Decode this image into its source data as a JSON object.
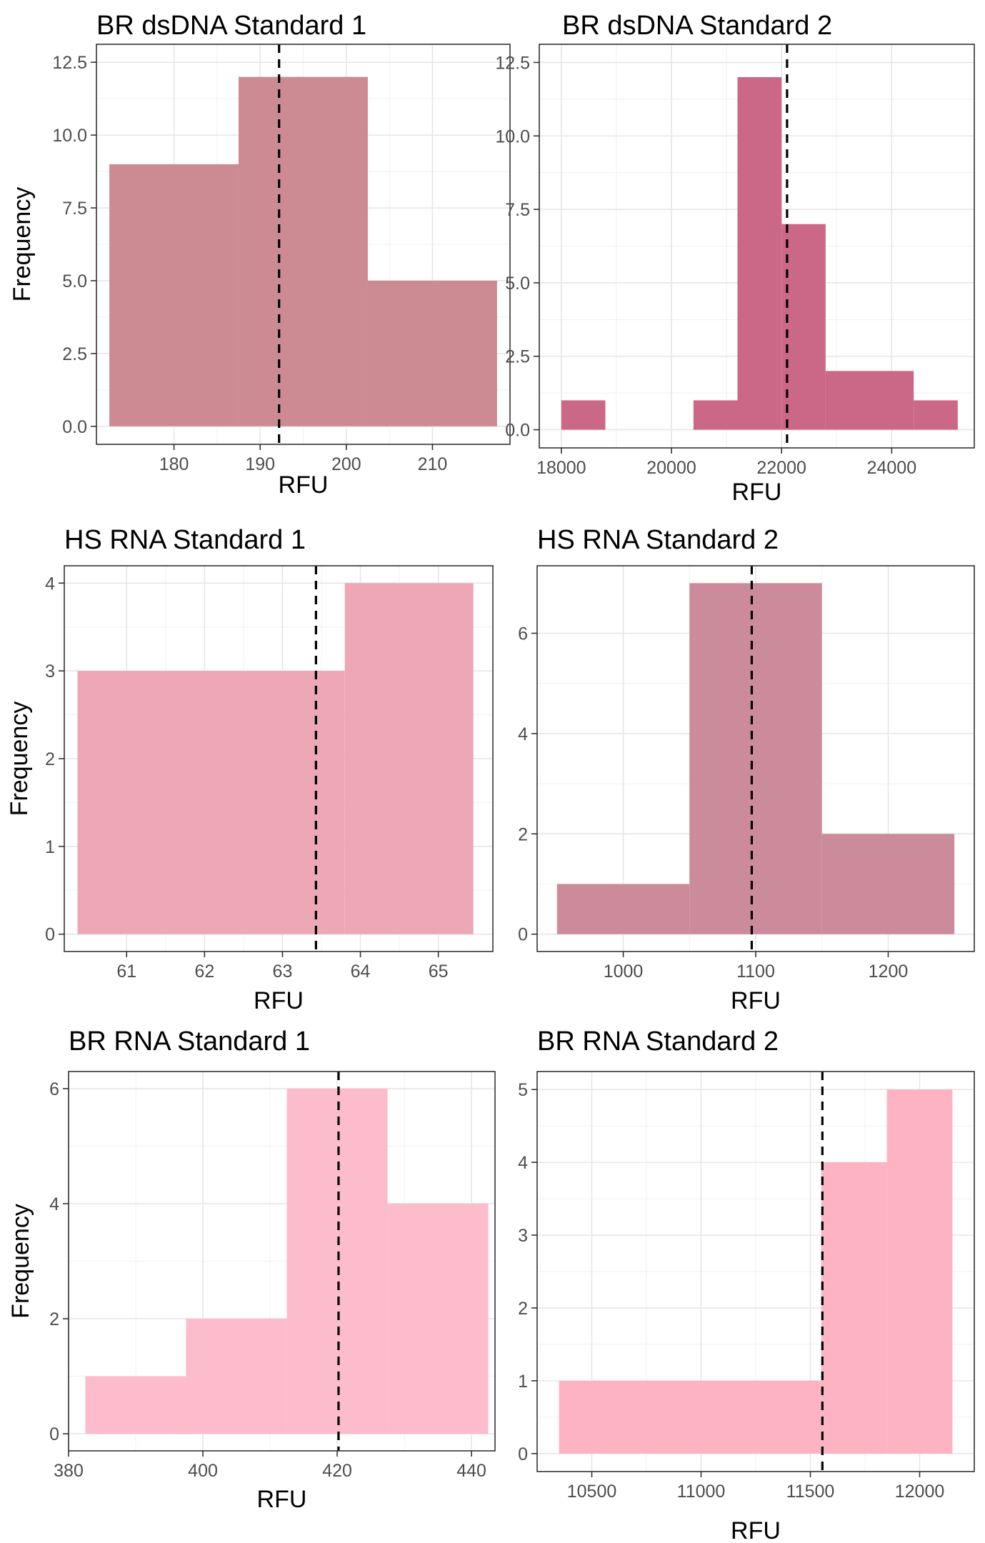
{
  "chart_data": [
    {
      "type": "bar",
      "title": "BR dsDNA Standard 1",
      "xlabel": "RFU",
      "ylabel": "Frequency",
      "color": "#cc8a93",
      "xlim": [
        171,
        219
      ],
      "ylim": [
        0,
        12.5
      ],
      "xticks": [
        180,
        190,
        200,
        210
      ],
      "xtick_labels": [
        "180",
        "190",
        "200",
        "210"
      ],
      "yticks": [
        0,
        2.5,
        5,
        7.5,
        10,
        12.5
      ],
      "ytick_labels": [
        "0.0",
        "2.5",
        "5.0",
        "7.5",
        "10.0",
        "12.5"
      ],
      "bins": [
        {
          "start": 172.5,
          "end": 187.5,
          "count": 9
        },
        {
          "start": 187.5,
          "end": 202.5,
          "count": 12
        },
        {
          "start": 202.5,
          "end": 217.5,
          "count": 5
        }
      ],
      "mean": 192.2,
      "grid": true
    },
    {
      "type": "bar",
      "title": "BR dsDNA Standard 2",
      "xlabel": "RFU",
      "ylabel": "",
      "color": "#cc6887",
      "xlim": [
        17600,
        25500
      ],
      "ylim": [
        0,
        12.5
      ],
      "xticks": [
        18000,
        20000,
        22000,
        24000
      ],
      "xtick_labels": [
        "18000",
        "20000",
        "22000",
        "24000"
      ],
      "yticks": [
        0,
        2.5,
        5,
        7.5,
        10,
        12.5
      ],
      "ytick_labels": [
        "0.0",
        "2.5",
        "5.0",
        "7.5",
        "10.0",
        "12.5"
      ],
      "bins": [
        {
          "start": 18000,
          "end": 18800,
          "count": 1
        },
        {
          "start": 20400,
          "end": 21200,
          "count": 1
        },
        {
          "start": 21200,
          "end": 22000,
          "count": 12
        },
        {
          "start": 22000,
          "end": 22800,
          "count": 7
        },
        {
          "start": 22800,
          "end": 24400,
          "count": 2
        },
        {
          "start": 24400,
          "end": 25200,
          "count": 1
        }
      ],
      "mean": 22100,
      "grid": true
    },
    {
      "type": "bar",
      "title": "HS RNA Standard 1",
      "xlabel": "RFU",
      "ylabel": "Frequency",
      "color": "#eda7b5",
      "xlim": [
        60.2,
        65.7
      ],
      "ylim": [
        0,
        4
      ],
      "xticks": [
        61,
        62,
        63,
        64,
        65
      ],
      "xtick_labels": [
        "61",
        "62",
        "63",
        "64",
        "65"
      ],
      "yticks": [
        0,
        1,
        2,
        3,
        4
      ],
      "ytick_labels": [
        "0",
        "1",
        "2",
        "3",
        "4"
      ],
      "bins": [
        {
          "start": 60.37,
          "end": 63.8,
          "count": 3
        },
        {
          "start": 63.8,
          "end": 65.45,
          "count": 4
        }
      ],
      "mean": 63.43,
      "grid": true
    },
    {
      "type": "bar",
      "title": "HS RNA Standard 2",
      "xlabel": "RFU",
      "ylabel": "",
      "color": "#cc8b9a",
      "xlim": [
        935,
        1265
      ],
      "ylim": [
        0,
        7
      ],
      "xticks": [
        1000,
        1100,
        1200
      ],
      "xtick_labels": [
        "1000",
        "1100",
        "1200"
      ],
      "yticks": [
        0,
        2,
        4,
        6
      ],
      "ytick_labels": [
        "0",
        "2",
        "4",
        "6"
      ],
      "bins": [
        {
          "start": 950,
          "end": 1050,
          "count": 1
        },
        {
          "start": 1050,
          "end": 1150,
          "count": 7
        },
        {
          "start": 1150,
          "end": 1250,
          "count": 2
        }
      ],
      "mean": 1097,
      "grid": true
    },
    {
      "type": "bar",
      "title": "BR RNA Standard 1",
      "xlabel": "RFU",
      "ylabel": "Frequency",
      "color": "#fcbccb",
      "xlim": [
        380,
        443.5
      ],
      "ylim": [
        0,
        6
      ],
      "xticks": [
        380,
        400,
        420,
        440
      ],
      "xtick_labels": [
        "380",
        "400",
        "420",
        "440"
      ],
      "yticks": [
        0,
        2,
        4,
        6
      ],
      "ytick_labels": [
        "0",
        "2",
        "4",
        "6"
      ],
      "bins": [
        {
          "start": 382.5,
          "end": 397.5,
          "count": 1
        },
        {
          "start": 397.5,
          "end": 412.5,
          "count": 2
        },
        {
          "start": 412.5,
          "end": 427.5,
          "count": 6
        },
        {
          "start": 427.5,
          "end": 442.5,
          "count": 4
        }
      ],
      "mean": 420.2,
      "grid": true
    },
    {
      "type": "bar",
      "title": "BR RNA Standard 2",
      "xlabel": "RFU",
      "ylabel": "",
      "color": "#feb3c3",
      "xlim": [
        10250,
        12250
      ],
      "ylim": [
        0,
        5
      ],
      "xticks": [
        10500,
        11000,
        11500,
        12000
      ],
      "xtick_labels": [
        "10500",
        "11000",
        "11500",
        "12000"
      ],
      "yticks": [
        0,
        1,
        2,
        3,
        4,
        5
      ],
      "ytick_labels": [
        "0",
        "1",
        "2",
        "3",
        "4",
        "5"
      ],
      "bins": [
        {
          "start": 10350,
          "end": 11550,
          "count": 1
        },
        {
          "start": 11550,
          "end": 11850,
          "count": 4
        },
        {
          "start": 11850,
          "end": 12150,
          "count": 5
        }
      ],
      "mean": 11555,
      "grid": true
    }
  ]
}
